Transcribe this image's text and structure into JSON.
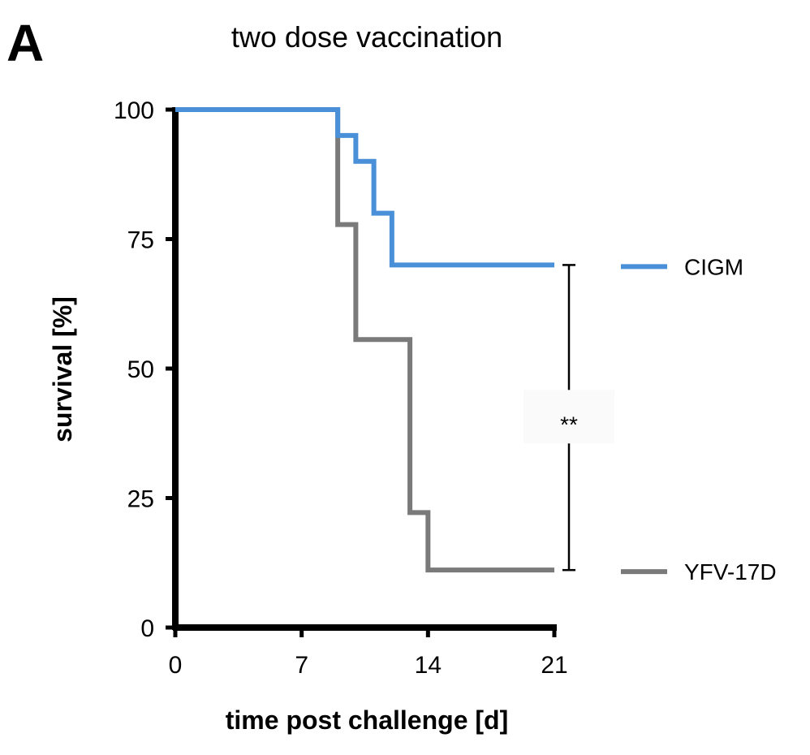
{
  "panel_label": "A",
  "chart_data": {
    "type": "line",
    "title": "two dose vaccination",
    "xlabel": "time post challenge [d]",
    "ylabel": "survival [%]",
    "xlim": [
      0,
      21
    ],
    "ylim": [
      0,
      100
    ],
    "xticks": [
      0,
      7,
      14,
      21
    ],
    "yticks": [
      0,
      25,
      50,
      75,
      100
    ],
    "step": true,
    "grid": false,
    "legend_placement": "right",
    "series": [
      {
        "name": "CIGM",
        "color": "#4a90d9",
        "x": [
          0,
          9,
          10,
          11,
          12,
          21
        ],
        "y": [
          100,
          95,
          90,
          80,
          70,
          70
        ]
      },
      {
        "name": "YFV-17D",
        "color": "#7a7a7a",
        "x": [
          0,
          9,
          10,
          13,
          14,
          21
        ],
        "y": [
          100,
          77.8,
          55.6,
          22.2,
          11.1,
          11.1
        ]
      }
    ],
    "annotations": [
      {
        "text": "**",
        "x": 21,
        "y_from": 11.1,
        "y_to": 70,
        "type": "significance-bracket"
      }
    ]
  }
}
